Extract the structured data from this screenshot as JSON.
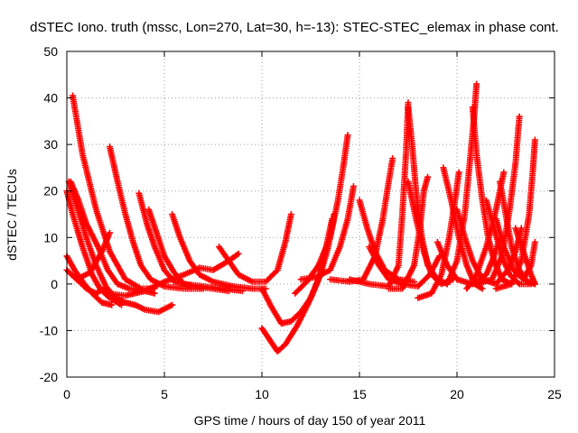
{
  "chart_data": {
    "type": "scatter",
    "title": "dSTEC Iono. truth (mssc, Lon=270, Lat=30, h=-13): STEC-STEC_elemax in phase cont.",
    "xlabel": "GPS time / hours of day 150 of year 2011",
    "ylabel": "dSTEC  / TECUs",
    "xlim": [
      0,
      25
    ],
    "ylim": [
      -20,
      50
    ],
    "x_ticks": [
      "0",
      "5",
      "10",
      "15",
      "20",
      "25"
    ],
    "y_ticks": [
      "-20",
      "-10",
      "0",
      "10",
      "20",
      "30",
      "40",
      "50"
    ],
    "grid": true,
    "marker": "+",
    "series_color": "#ff0000",
    "series": [
      {
        "points": [
          [
            0.3,
            40.5
          ],
          [
            0.8,
            28
          ],
          [
            1.5,
            16
          ],
          [
            2.2,
            7
          ],
          [
            3.0,
            1
          ],
          [
            3.8,
            -1
          ],
          [
            4.5,
            -1
          ]
        ]
      },
      {
        "points": [
          [
            0.1,
            22
          ],
          [
            0.5,
            17
          ],
          [
            1.0,
            10
          ],
          [
            1.5,
            4
          ],
          [
            2.0,
            -0.5
          ],
          [
            2.5,
            -3
          ],
          [
            3.0,
            -4
          ],
          [
            3.5,
            -4.5
          ],
          [
            4.0,
            -5.5
          ],
          [
            4.7,
            -6
          ],
          [
            5.4,
            -4.5
          ]
        ]
      },
      {
        "points": [
          [
            0.2,
            22
          ],
          [
            0.6,
            18
          ],
          [
            1.0,
            13
          ],
          [
            1.6,
            8
          ],
          [
            2.1,
            3
          ],
          [
            2.6,
            0
          ],
          [
            3.2,
            -1
          ],
          [
            4.0,
            -1.5
          ],
          [
            4.5,
            -2
          ]
        ]
      },
      {
        "points": [
          [
            0.0,
            20
          ],
          [
            0.3,
            15
          ],
          [
            0.8,
            8
          ],
          [
            1.3,
            2
          ],
          [
            1.7,
            -1
          ],
          [
            2.2,
            -3
          ],
          [
            2.8,
            -4.5
          ]
        ]
      },
      {
        "points": [
          [
            0.0,
            6
          ],
          [
            0.4,
            3
          ],
          [
            0.9,
            0
          ],
          [
            1.3,
            -2
          ],
          [
            1.8,
            -4
          ],
          [
            2.3,
            -4.5
          ]
        ]
      },
      {
        "points": [
          [
            0.0,
            3
          ],
          [
            0.5,
            1
          ],
          [
            1.2,
            2.5
          ],
          [
            1.8,
            7
          ],
          [
            2.2,
            11
          ]
        ]
      },
      {
        "points": [
          [
            0.4,
            1.5
          ],
          [
            1.0,
            -1
          ],
          [
            1.5,
            -2
          ],
          [
            1.9,
            -1
          ],
          [
            2.2,
            -2.5
          ]
        ]
      },
      {
        "points": [
          [
            2.2,
            29.5
          ],
          [
            2.6,
            22
          ],
          [
            3.0,
            15
          ],
          [
            3.4,
            9
          ],
          [
            3.8,
            4
          ],
          [
            4.3,
            1
          ],
          [
            5.0,
            -0.5
          ],
          [
            6.0,
            -1
          ],
          [
            7.0,
            -1
          ]
        ]
      },
      {
        "points": [
          [
            3.7,
            19.5
          ],
          [
            4.1,
            13
          ],
          [
            4.5,
            8
          ],
          [
            5.0,
            3
          ],
          [
            5.5,
            0.5
          ],
          [
            6.5,
            -0.5
          ],
          [
            7.5,
            -1
          ],
          [
            8.3,
            -1.5
          ]
        ]
      },
      {
        "points": [
          [
            4.2,
            16
          ],
          [
            4.6,
            11
          ],
          [
            5.0,
            6
          ],
          [
            5.5,
            2.5
          ],
          [
            6.0,
            0
          ],
          [
            7.0,
            -0.5
          ],
          [
            8.0,
            -1
          ],
          [
            9.0,
            -1.5
          ]
        ]
      },
      {
        "points": [
          [
            5.4,
            15
          ],
          [
            5.8,
            10
          ],
          [
            6.3,
            5
          ],
          [
            6.8,
            2
          ],
          [
            7.5,
            0.5
          ],
          [
            8.5,
            -0.5
          ],
          [
            9.5,
            -1
          ],
          [
            10.2,
            -1
          ]
        ]
      },
      {
        "points": [
          [
            2.0,
            -2
          ],
          [
            3.0,
            -2.5
          ],
          [
            4.0,
            -1.5
          ],
          [
            5.0,
            0.5
          ],
          [
            6.0,
            2
          ],
          [
            6.8,
            3.5
          ],
          [
            7.5,
            3
          ],
          [
            8.3,
            5
          ],
          [
            8.8,
            6.5
          ]
        ]
      },
      {
        "points": [
          [
            7.8,
            8
          ],
          [
            8.3,
            5
          ],
          [
            8.8,
            2
          ],
          [
            9.5,
            0.5
          ],
          [
            10.2,
            0.5
          ],
          [
            10.8,
            3
          ],
          [
            11.2,
            9
          ],
          [
            11.5,
            15
          ]
        ]
      },
      {
        "points": [
          [
            10.0,
            -1
          ],
          [
            10.5,
            -5
          ],
          [
            11.0,
            -8.5
          ],
          [
            11.5,
            -8
          ],
          [
            12.0,
            -6
          ],
          [
            12.5,
            -3
          ],
          [
            13.0,
            2
          ],
          [
            13.4,
            8
          ],
          [
            13.7,
            15
          ]
        ]
      },
      {
        "points": [
          [
            10.0,
            -9.5
          ],
          [
            10.4,
            -12
          ],
          [
            10.8,
            -14.5
          ],
          [
            11.2,
            -13
          ],
          [
            11.8,
            -9
          ],
          [
            12.4,
            -4
          ],
          [
            12.9,
            1
          ],
          [
            13.3,
            8
          ],
          [
            13.6,
            14
          ]
        ]
      },
      {
        "points": [
          [
            11.7,
            -2
          ],
          [
            12.3,
            0.5
          ],
          [
            12.9,
            4
          ],
          [
            13.5,
            10
          ],
          [
            13.9,
            18
          ],
          [
            14.2,
            26
          ],
          [
            14.4,
            32
          ]
        ]
      },
      {
        "points": [
          [
            12.0,
            1
          ],
          [
            12.8,
            1.5
          ],
          [
            13.5,
            3
          ],
          [
            14.0,
            8
          ],
          [
            14.4,
            14
          ],
          [
            14.7,
            21
          ]
        ]
      },
      {
        "points": [
          [
            13.5,
            1
          ],
          [
            14.5,
            0.5
          ],
          [
            15.2,
            1
          ],
          [
            15.8,
            6
          ],
          [
            16.2,
            14
          ],
          [
            16.5,
            22
          ],
          [
            16.7,
            27
          ]
        ]
      },
      {
        "points": [
          [
            14.5,
            1
          ],
          [
            15.5,
            0
          ],
          [
            16.5,
            -0.5
          ],
          [
            17.0,
            4
          ],
          [
            17.2,
            15
          ],
          [
            17.4,
            29
          ],
          [
            17.5,
            39
          ]
        ]
      },
      {
        "points": [
          [
            17.5,
            38
          ],
          [
            17.7,
            30
          ],
          [
            17.9,
            20
          ],
          [
            18.2,
            10
          ],
          [
            18.5,
            4
          ],
          [
            19.0,
            1
          ],
          [
            19.5,
            0
          ]
        ]
      },
      {
        "points": [
          [
            16.5,
            -1
          ],
          [
            17.2,
            -1
          ],
          [
            17.8,
            4
          ],
          [
            18.1,
            12
          ],
          [
            18.3,
            20
          ],
          [
            18.5,
            23
          ]
        ]
      },
      {
        "points": [
          [
            17.5,
            22
          ],
          [
            17.9,
            14
          ],
          [
            18.3,
            7
          ],
          [
            18.7,
            2
          ],
          [
            19.2,
            0
          ],
          [
            19.8,
            1
          ]
        ]
      },
      {
        "points": [
          [
            18.0,
            -3
          ],
          [
            18.7,
            -2
          ],
          [
            19.2,
            2
          ],
          [
            19.6,
            10
          ],
          [
            19.9,
            18
          ],
          [
            20.1,
            24
          ]
        ]
      },
      {
        "points": [
          [
            19.3,
            25
          ],
          [
            19.7,
            18
          ],
          [
            20.1,
            10
          ],
          [
            20.5,
            4
          ],
          [
            20.9,
            0
          ],
          [
            21.3,
            -1
          ]
        ]
      },
      {
        "points": [
          [
            19.5,
            0
          ],
          [
            20.0,
            5
          ],
          [
            20.4,
            15
          ],
          [
            20.7,
            28
          ],
          [
            20.9,
            37
          ],
          [
            21.0,
            43
          ]
        ]
      },
      {
        "points": [
          [
            20.8,
            38
          ],
          [
            21.0,
            28
          ],
          [
            21.3,
            18
          ],
          [
            21.6,
            10
          ],
          [
            21.9,
            5
          ],
          [
            22.3,
            1
          ],
          [
            22.8,
            0
          ]
        ]
      },
      {
        "points": [
          [
            20.5,
            -1
          ],
          [
            21.0,
            2
          ],
          [
            21.5,
            8
          ],
          [
            21.9,
            14
          ],
          [
            22.2,
            20
          ],
          [
            22.4,
            24
          ]
        ]
      },
      {
        "points": [
          [
            21.5,
            18
          ],
          [
            21.9,
            12
          ],
          [
            22.3,
            6
          ],
          [
            22.7,
            2
          ],
          [
            23.2,
            0
          ],
          [
            23.8,
            0
          ]
        ]
      },
      {
        "points": [
          [
            21.0,
            0
          ],
          [
            21.8,
            1
          ],
          [
            22.3,
            6
          ],
          [
            22.7,
            16
          ],
          [
            23.0,
            26
          ],
          [
            23.2,
            36
          ]
        ]
      },
      {
        "points": [
          [
            22.2,
            22
          ],
          [
            22.5,
            15
          ],
          [
            22.8,
            8
          ],
          [
            23.2,
            3
          ],
          [
            23.6,
            0.5
          ],
          [
            24.0,
            0
          ]
        ]
      },
      {
        "points": [
          [
            22.0,
            -1
          ],
          [
            22.8,
            0
          ],
          [
            23.3,
            5
          ],
          [
            23.7,
            15
          ],
          [
            23.9,
            25
          ],
          [
            24.0,
            31
          ]
        ]
      },
      {
        "points": [
          [
            23.0,
            12
          ],
          [
            23.4,
            7
          ],
          [
            23.8,
            2
          ],
          [
            24.0,
            0
          ]
        ]
      },
      {
        "points": [
          [
            19.0,
            9
          ],
          [
            19.5,
            4
          ],
          [
            20.0,
            1
          ],
          [
            20.8,
            0
          ],
          [
            21.5,
            2
          ],
          [
            21.9,
            6
          ],
          [
            22.2,
            10
          ]
        ]
      },
      {
        "points": [
          [
            20.0,
            16
          ],
          [
            20.4,
            10
          ],
          [
            20.8,
            5
          ],
          [
            21.3,
            1
          ],
          [
            22.0,
            0
          ],
          [
            22.6,
            3
          ],
          [
            23.0,
            7
          ],
          [
            23.3,
            12
          ]
        ]
      },
      {
        "points": [
          [
            22.0,
            14
          ],
          [
            22.4,
            8
          ],
          [
            22.9,
            3
          ],
          [
            23.4,
            1
          ],
          [
            23.8,
            4
          ],
          [
            24.0,
            9
          ]
        ]
      },
      {
        "points": [
          [
            15.0,
            18
          ],
          [
            15.4,
            12
          ],
          [
            15.8,
            7
          ],
          [
            16.3,
            3
          ],
          [
            17.0,
            1
          ],
          [
            17.8,
            0.5
          ]
        ]
      },
      {
        "points": [
          [
            15.5,
            8
          ],
          [
            16.0,
            4
          ],
          [
            16.5,
            1
          ],
          [
            17.2,
            0
          ],
          [
            18.0,
            -0.5
          ],
          [
            18.6,
            2
          ],
          [
            19.1,
            6
          ]
        ]
      }
    ]
  }
}
